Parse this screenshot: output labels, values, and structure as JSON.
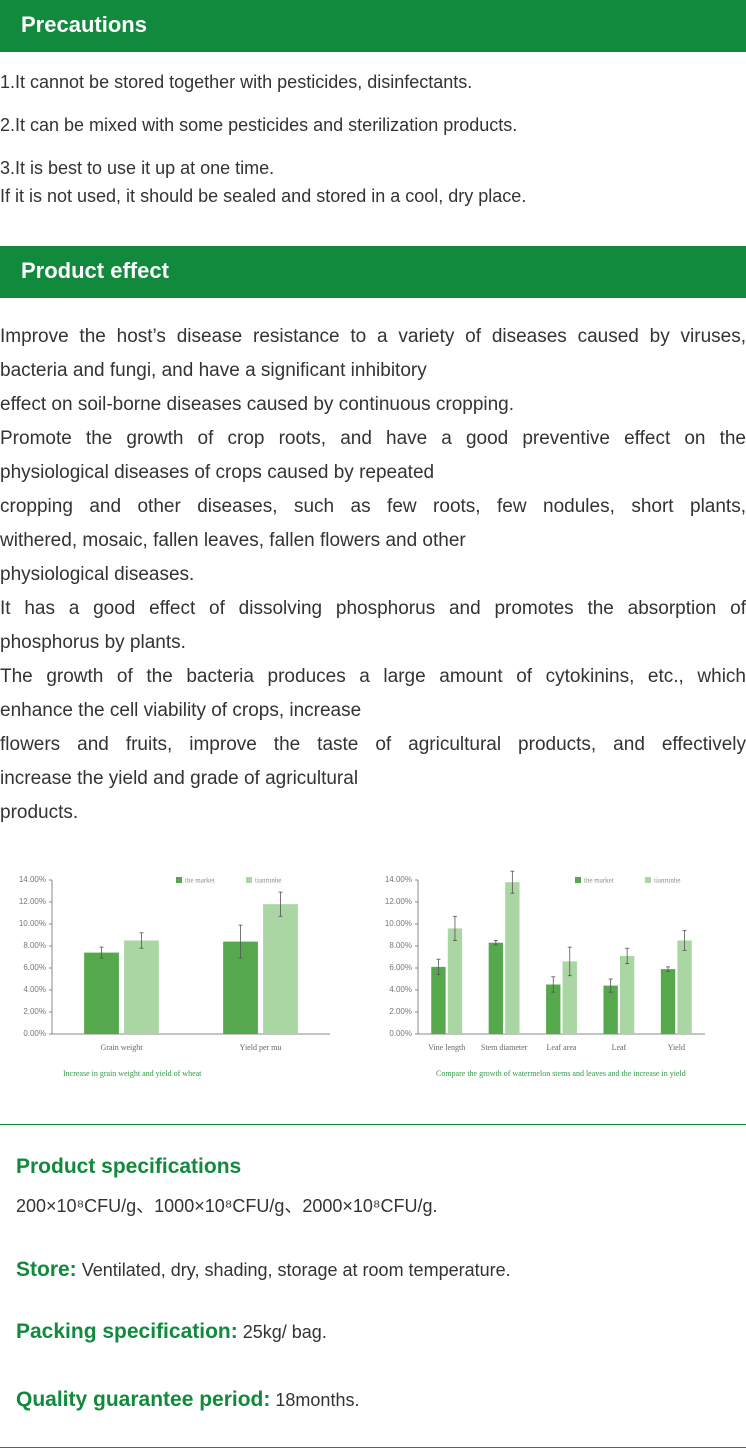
{
  "precautions": {
    "title": "Precautions",
    "lines": [
      "1.It cannot be stored together with pesticides, disinfectants.",
      "2.It can be mixed with some pesticides and sterilization products.",
      "3.It is best to use it up at one time.",
      "If it is not used, it should be sealed and stored in a cool, dry place."
    ]
  },
  "effect": {
    "title": "Product effect",
    "lines": [
      "Improve the host’s disease resistance to a variety of diseases caused by viruses,",
      "bacteria and fungi, and have a significant inhibitory",
      "effect on soil-borne diseases caused by continuous cropping.",
      "Promote the growth of crop roots, and have a good preventive effect on the",
      "physiological diseases of crops caused by repeated",
      "cropping and other diseases, such as few roots, few nodules, short plants,",
      "withered, mosaic, fallen leaves, fallen flowers and other",
      "physiological diseases.",
      "It has a good effect of dissolving phosphorus and promotes the absorption of",
      "phosphorus by plants.",
      "The growth of the bacteria produces a large amount of cytokinins, etc., which",
      "enhance the cell viability of crops, increase",
      "flowers and fruits, improve the taste of agricultural products, and effectively",
      "increase the yield and grade of agricultural",
      "products."
    ]
  },
  "chart_data": [
    {
      "type": "bar",
      "caption": "Increase in grain weight and yield of wheat",
      "categories": [
        "Grain weight",
        "Yield per mu"
      ],
      "series": [
        {
          "name": "the market",
          "color": "#55a84c",
          "values": [
            7.4,
            8.4
          ],
          "errors": [
            0.5,
            1.5
          ]
        },
        {
          "name": "tianrunhe",
          "color": "#a9d6a2",
          "values": [
            8.5,
            11.8
          ],
          "errors": [
            0.7,
            1.1
          ]
        }
      ],
      "ylim": [
        0,
        14
      ],
      "yticks": [
        {
          "value": 0,
          "label": "0.00%"
        },
        {
          "value": 2,
          "label": "2.00%"
        },
        {
          "value": 4,
          "label": "4.00%"
        },
        {
          "value": 6,
          "label": "6.00%"
        },
        {
          "value": 8,
          "label": "8.00%"
        },
        {
          "value": 10,
          "label": "10.00%"
        },
        {
          "value": 12,
          "label": "12.00%"
        },
        {
          "value": 14,
          "label": "14.00%"
        }
      ]
    },
    {
      "type": "bar",
      "caption": "Compare the growth of watermelon stems and leaves and the increase in yield",
      "categories": [
        "Vine length",
        "Stem diameter",
        "Leaf area",
        "Leaf",
        "Yield"
      ],
      "series": [
        {
          "name": "the market",
          "color": "#55a84c",
          "values": [
            6.1,
            8.3,
            4.5,
            4.4,
            5.9
          ],
          "errors": [
            0.7,
            0.2,
            0.7,
            0.6,
            0.2
          ]
        },
        {
          "name": "tianrunhe",
          "color": "#a9d6a2",
          "values": [
            9.6,
            13.8,
            6.6,
            7.1,
            8.5
          ],
          "errors": [
            1.1,
            1.0,
            1.3,
            0.7,
            0.9
          ]
        }
      ],
      "ylim": [
        0,
        14
      ],
      "yticks": [
        {
          "value": 0,
          "label": "0.00%"
        },
        {
          "value": 2,
          "label": "2.00%"
        },
        {
          "value": 4,
          "label": "4.00%"
        },
        {
          "value": 6,
          "label": "6.00%"
        },
        {
          "value": 8,
          "label": "8.00%"
        },
        {
          "value": 10,
          "label": "10.00%"
        },
        {
          "value": 12,
          "label": "12.00%"
        },
        {
          "value": 14,
          "label": "14.00%"
        }
      ]
    }
  ],
  "specs": {
    "title": "Product specifications",
    "text": "200×10⁸CFU/g、1000×10⁸CFU/g、2000×10⁸CFU/g.",
    "rows": [
      {
        "label": "Store:",
        "value": "Ventilated, dry, shading, storage at room temperature."
      },
      {
        "label": "Packing specification:",
        "value": "25kg/ bag."
      },
      {
        "label": "Quality guarantee period:",
        "value": "18months."
      }
    ]
  }
}
